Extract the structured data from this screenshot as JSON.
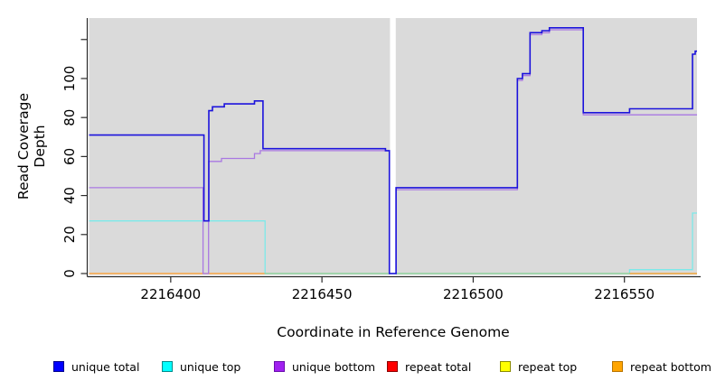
{
  "chart_data": {
    "type": "line",
    "style": "step",
    "title": "",
    "xlabel": "Coordinate in Reference Genome",
    "ylabel": "Read Coverage Depth",
    "xlim": [
      2216373,
      2216574
    ],
    "ylim": [
      0,
      131
    ],
    "grid": false,
    "plot_bg": "#dadada",
    "axis_color": "#2b2b2b",
    "x_ticks": {
      "values": [
        2216400,
        2216450,
        2216500,
        2216550
      ],
      "labels": [
        "2216400",
        "2216450",
        "2216500",
        "2216550"
      ]
    },
    "y_ticks": {
      "values": [
        0,
        20,
        40,
        60,
        80,
        100,
        120
      ],
      "labels": [
        "0",
        "20",
        "40",
        "60",
        "80",
        "100",
        ""
      ]
    },
    "gap_region": {
      "x_start": 2216472.5,
      "x_end": 2216474.4,
      "color": "#ffffff"
    },
    "series": [
      {
        "name": "unique top",
        "color": "#7ce9e9",
        "width": 1.3,
        "segments": [
          [
            [
              2216373,
              27
            ],
            [
              2216431.2,
              0
            ],
            [
              2216551.7,
              2
            ],
            [
              2216572.5,
              31
            ],
            [
              2216574,
              null
            ]
          ]
        ]
      },
      {
        "name": "zero coverage baseline",
        "color": "#8fce8f",
        "width": 1.3,
        "segments": [
          [
            [
              2216431,
              0
            ],
            [
              2216574,
              null
            ]
          ]
        ]
      },
      {
        "name": "repeat bottom",
        "color": "#ff9b26",
        "width": 1.3,
        "segments": [
          [
            [
              2216373,
              0
            ],
            [
              2216431,
              null
            ]
          ],
          [
            [
              2216551.7,
              0
            ],
            [
              2216574,
              null
            ]
          ]
        ]
      },
      {
        "name": "unique bottom",
        "color": "#a978e2",
        "width": 1.3,
        "segments": [
          [
            [
              2216373,
              44
            ],
            [
              2216410.7,
              0
            ],
            [
              2216412.5,
              57.5
            ],
            [
              2216416.8,
              59
            ],
            [
              2216427.7,
              61.5
            ],
            [
              2216429.6,
              63
            ],
            [
              2216472.3,
              0
            ],
            [
              2216474.5,
              43
            ],
            [
              2216514.6,
              99
            ],
            [
              2216516.3,
              101.5
            ],
            [
              2216518.8,
              122.5
            ],
            [
              2216522.7,
              123.5
            ],
            [
              2216525.2,
              125
            ],
            [
              2216536.4,
              81.4
            ],
            [
              2216574,
              null
            ]
          ]
        ]
      },
      {
        "name": "unique total",
        "color": "#1c13dc",
        "width": 1.6,
        "segments": [
          [
            [
              2216373,
              71
            ],
            [
              2216411,
              27
            ],
            [
              2216412.6,
              83.5
            ],
            [
              2216413.8,
              85.5
            ],
            [
              2216417.7,
              87
            ],
            [
              2216427.7,
              88.5
            ],
            [
              2216430.5,
              64
            ],
            [
              2216471,
              63
            ],
            [
              2216472.3,
              0
            ],
            [
              2216474.5,
              44
            ],
            [
              2216514.6,
              100
            ],
            [
              2216516.3,
              102.5
            ],
            [
              2216518.8,
              123.5
            ],
            [
              2216522.7,
              124.5
            ],
            [
              2216525.2,
              126
            ],
            [
              2216536.4,
              82.5
            ],
            [
              2216551.7,
              84.5
            ],
            [
              2216572.5,
              112.5
            ],
            [
              2216573.4,
              114
            ],
            [
              2216574,
              null
            ]
          ]
        ]
      },
      {
        "name": "repeat total",
        "color": "#ff0000",
        "width": 1.3,
        "segments": []
      },
      {
        "name": "repeat top",
        "color": "#ffff00",
        "width": 1.3,
        "segments": []
      }
    ],
    "legend": [
      {
        "label": "unique total",
        "fill": "#0000ff",
        "border": "#00008b"
      },
      {
        "label": "unique top",
        "fill": "#00ffff",
        "border": "#008b8b"
      },
      {
        "label": "unique bottom",
        "fill": "#a020f0",
        "border": "#6a0dad"
      },
      {
        "label": "repeat total",
        "fill": "#ff0000",
        "border": "#8b0000"
      },
      {
        "label": "repeat top",
        "fill": "#ffff00",
        "border": "#8b8b00"
      },
      {
        "label": "repeat bottom",
        "fill": "#ffa500",
        "border": "#b87400"
      }
    ],
    "legend_position": "bottom"
  }
}
